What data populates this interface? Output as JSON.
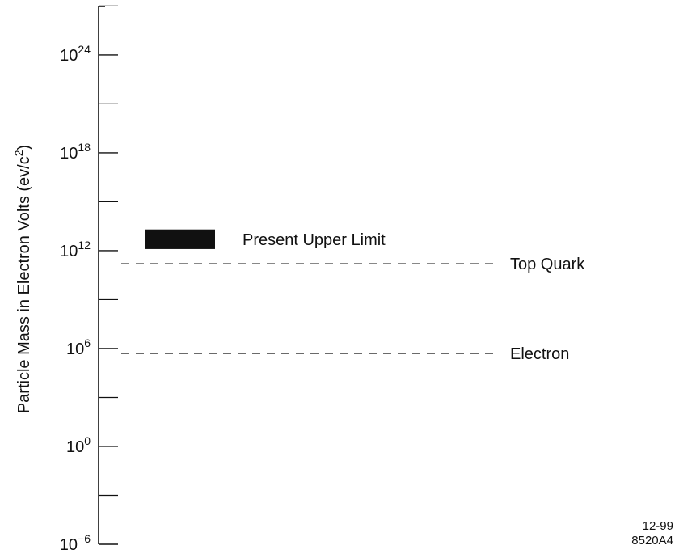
{
  "chart_data": {
    "type": "scatter",
    "title": "",
    "xlabel": "",
    "ylabel": "Particle Mass in Electron Volts  (ev/c²)",
    "y_scale": "log10",
    "ylim_exponent": [
      -6,
      28
    ],
    "y_tick_exponents": [
      -6,
      0,
      6,
      12,
      18,
      24
    ],
    "y_minor_tick_exponents": [
      -3,
      3,
      9,
      15,
      21,
      27
    ],
    "grid": false,
    "reference_lines": [
      {
        "label": "Top Quark",
        "value_exponent": 11.2,
        "style": "dashed"
      },
      {
        "label": "Electron",
        "value_exponent": 5.7,
        "style": "dashed"
      }
    ],
    "ranges": [
      {
        "label": "Present Upper Limit",
        "low_exponent": 12.1,
        "high_exponent": 13.3,
        "color": "#111111"
      }
    ]
  },
  "figure_id": {
    "line1": "12-99",
    "line2": "8520A4"
  }
}
